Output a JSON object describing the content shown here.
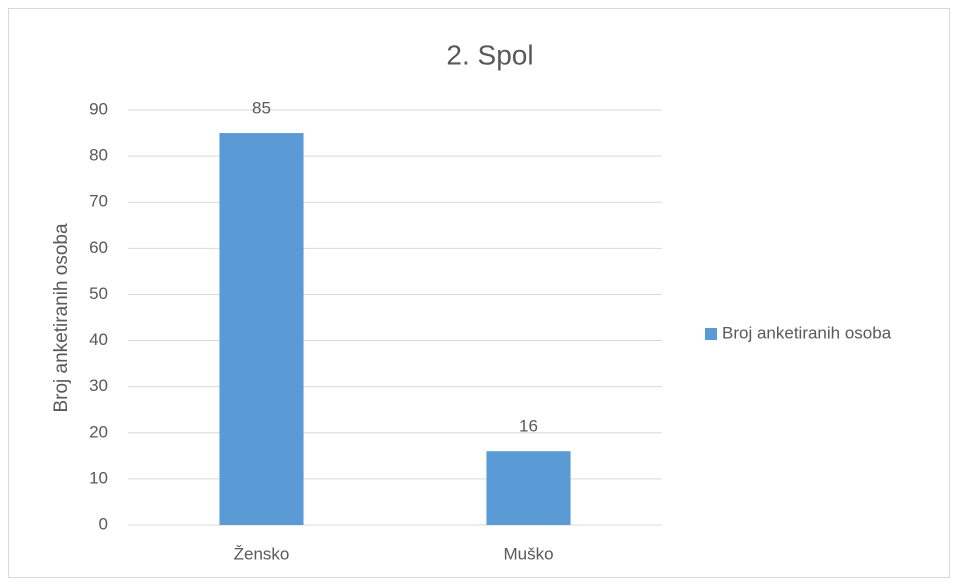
{
  "chart_data": {
    "type": "bar",
    "title": "2. Spol",
    "y_label": "Broj anketiranih osoba",
    "categories": [
      "Žensko",
      "Muško"
    ],
    "series": [
      {
        "name": "Broj anketiranih osoba",
        "color": "#5b9bd5",
        "values": [
          85,
          16
        ]
      }
    ],
    "ylim": [
      0,
      90
    ],
    "yticks": [
      0,
      10,
      20,
      30,
      40,
      50,
      60,
      70,
      80,
      90
    ],
    "grid": true,
    "legend": "right",
    "data_labels": true
  }
}
